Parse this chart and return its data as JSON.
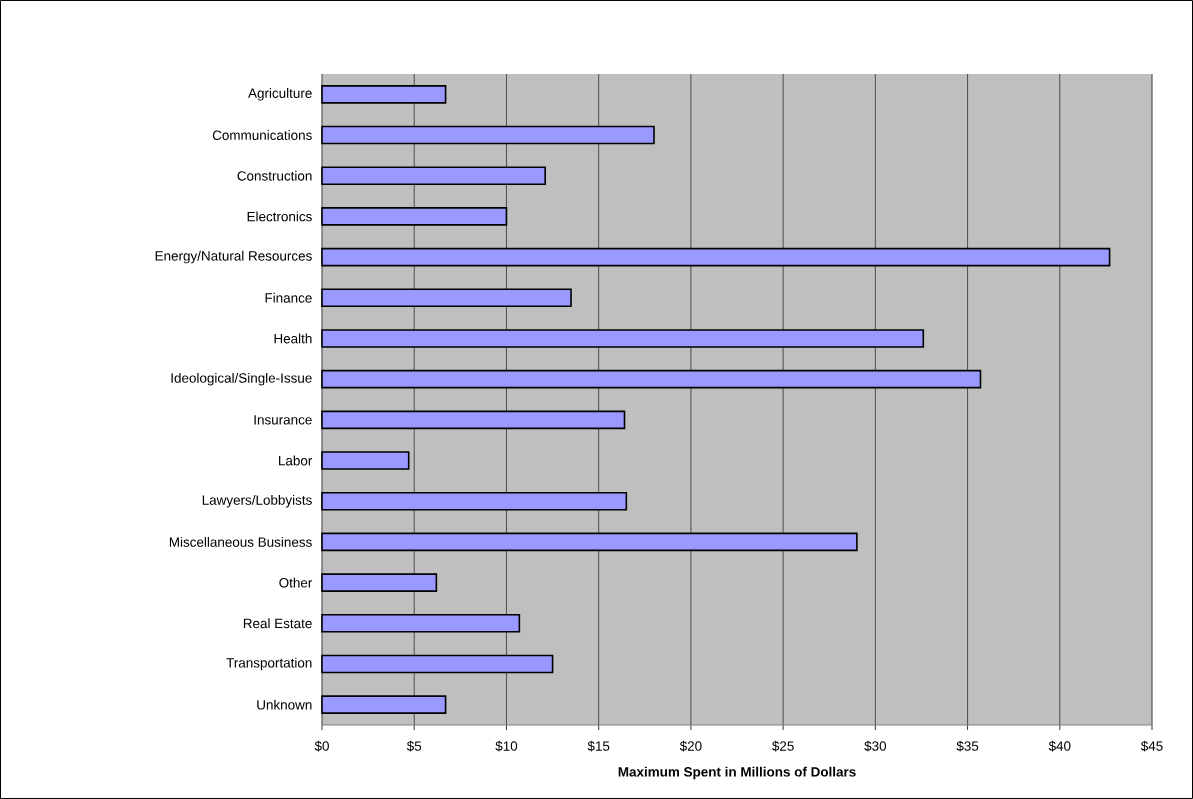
{
  "chart_data": {
    "type": "bar",
    "orientation": "horizontal",
    "xlabel": "Maximum Spent in Millions of Dollars",
    "categories": [
      "Agriculture",
      "Communications",
      "Construction",
      "Electronics",
      "Energy/Natural Resources",
      "Finance",
      "Health",
      "Ideological/Single-Issue",
      "Insurance",
      "Labor",
      "Lawyers/Lobbyists",
      "Miscellaneous Business",
      "Other",
      "Real Estate",
      "Transportation",
      "Unknown"
    ],
    "values": [
      6.7,
      18.0,
      12.1,
      10.0,
      42.7,
      13.5,
      32.6,
      35.7,
      16.4,
      4.7,
      16.5,
      29.0,
      6.2,
      10.7,
      12.5,
      6.7
    ],
    "color": "#9999ff",
    "xlim": [
      0,
      45
    ],
    "xticks": [
      {
        "value": 0,
        "label": "$0"
      },
      {
        "value": 5,
        "label": "$5"
      },
      {
        "value": 10,
        "label": "$10"
      },
      {
        "value": 15,
        "label": "$15"
      },
      {
        "value": 20,
        "label": "$20"
      },
      {
        "value": 25,
        "label": "$25"
      },
      {
        "value": 30,
        "label": "$30"
      },
      {
        "value": 35,
        "label": "$35"
      },
      {
        "value": 40,
        "label": "$40"
      },
      {
        "value": 45,
        "label": "$45"
      }
    ],
    "grid": "x"
  }
}
